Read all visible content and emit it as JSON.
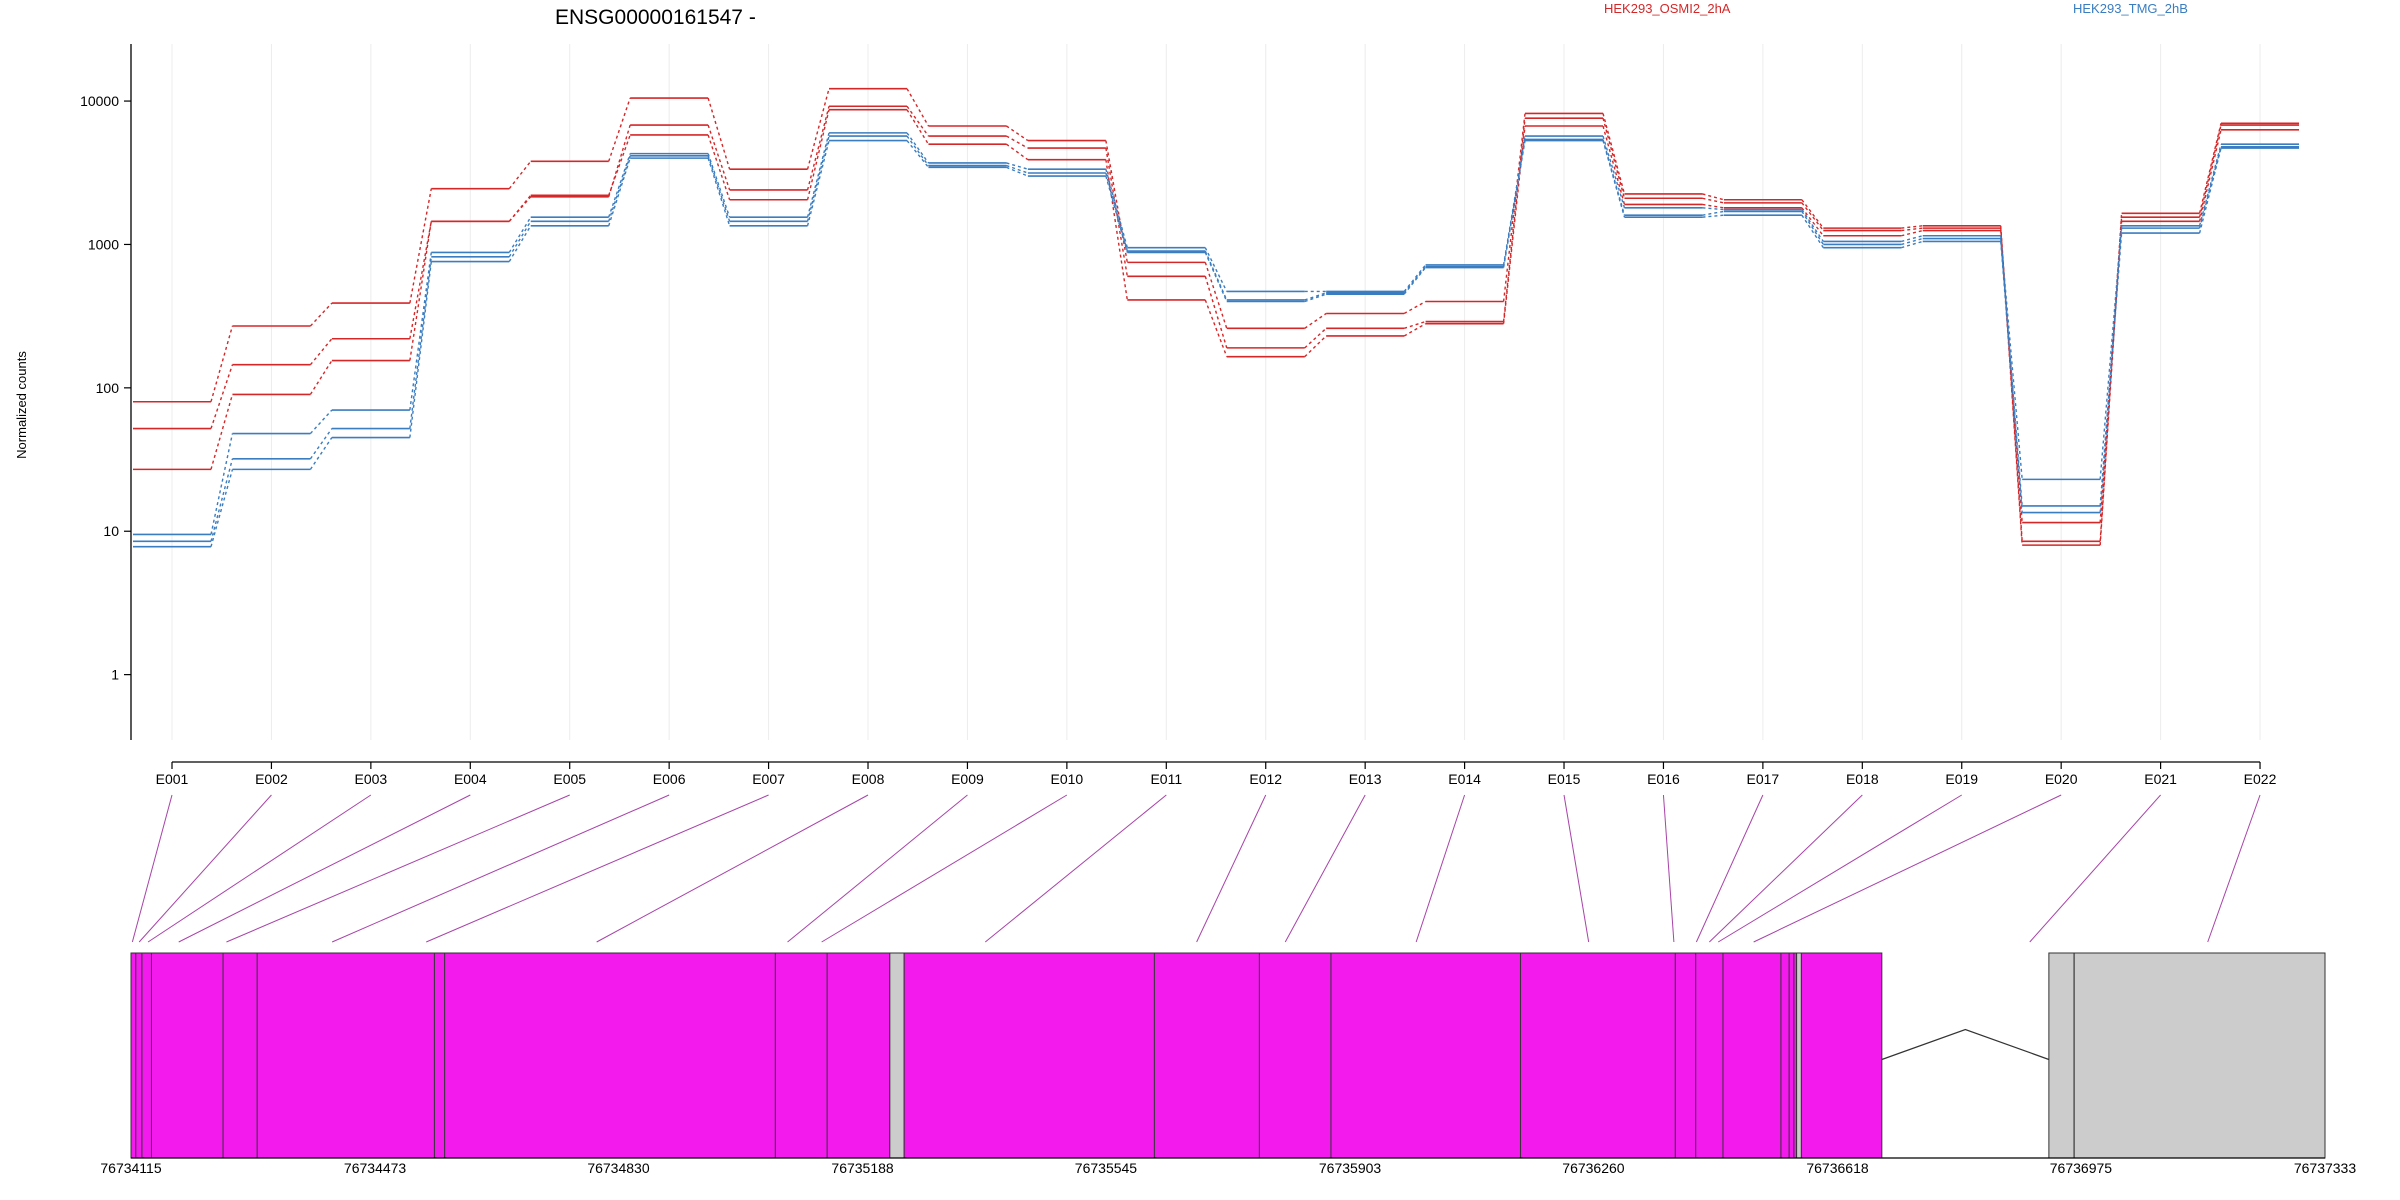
{
  "chart_data": {
    "type": "line",
    "title": "ENSG00000161547 -",
    "ylabel": "Normalized counts",
    "yscale": "log",
    "ylim": [
      0.35,
      25000
    ],
    "yticks": [
      1,
      10,
      100,
      1000,
      10000
    ],
    "ytick_labels": [
      "1",
      "10",
      "100",
      "1000",
      "10000"
    ],
    "grid": "vertical",
    "legend": [
      {
        "name": "HEK293_OSMI2_2hA",
        "color": "#d62728"
      },
      {
        "name": "HEK293_TMG_2hB",
        "color": "#3a7dc0"
      }
    ],
    "categories": [
      "E001",
      "E002",
      "E003",
      "E004",
      "E005",
      "E006",
      "E007",
      "E008",
      "E009",
      "E010",
      "E011",
      "E012",
      "E013",
      "E014",
      "E015",
      "E016",
      "E017",
      "E018",
      "E019",
      "E020",
      "E021",
      "E022"
    ],
    "series": [
      {
        "group": "HEK293_OSMI2_2hA",
        "color": "#d62728",
        "values": [
          80,
          270,
          390,
          2450,
          3800,
          10500,
          3350,
          12200,
          6700,
          5300,
          750,
          260,
          330,
          400,
          8200,
          2250,
          2050,
          1300,
          1350,
          8.5,
          1650,
          7000
        ]
      },
      {
        "group": "HEK293_OSMI2_2hA",
        "color": "#d62728",
        "values": [
          52,
          145,
          220,
          1450,
          2150,
          6800,
          2400,
          9200,
          5700,
          4700,
          600,
          190,
          260,
          290,
          7600,
          2100,
          1950,
          1250,
          1300,
          8,
          1550,
          6800
        ]
      },
      {
        "group": "HEK293_OSMI2_2hA",
        "color": "#d62728",
        "values": [
          27,
          90,
          155,
          1450,
          2200,
          5800,
          2050,
          8700,
          5000,
          3900,
          410,
          165,
          230,
          280,
          6700,
          1900,
          1800,
          1150,
          1250,
          11.5,
          1450,
          6300
        ]
      },
      {
        "group": "HEK293_TMG_2hB",
        "color": "#3a7dc0",
        "values": [
          9.5,
          48,
          70,
          880,
          1550,
          4300,
          1550,
          6000,
          3700,
          3350,
          950,
          470,
          470,
          720,
          5700,
          1800,
          1750,
          1050,
          1150,
          23,
          1350,
          5000
        ]
      },
      {
        "group": "HEK293_TMG_2hB",
        "color": "#3a7dc0",
        "values": [
          8.5,
          32,
          52,
          820,
          1450,
          4150,
          1450,
          5700,
          3550,
          3150,
          900,
          410,
          460,
          700,
          5400,
          1600,
          1700,
          1000,
          1100,
          15,
          1300,
          4800
        ]
      },
      {
        "group": "HEK293_TMG_2hB",
        "color": "#3a7dc0",
        "values": [
          7.8,
          27,
          45,
          760,
          1350,
          4000,
          1350,
          5300,
          3450,
          3000,
          880,
          400,
          450,
          690,
          5300,
          1550,
          1600,
          950,
          1050,
          13.5,
          1200,
          4700
        ]
      }
    ],
    "gene_model": {
      "coord_start": 76734115,
      "coord_end": 76737333,
      "coord_ticks": [
        76734115,
        76734473,
        76734830,
        76735188,
        76735545,
        76735903,
        76736260,
        76736618,
        76736975,
        76737333
      ],
      "coord_tick_labels": [
        "76734115",
        "76734473",
        "76734830",
        "76735188",
        "76735545",
        "76735903",
        "76736260",
        "76736618",
        "76736975",
        "76737333"
      ],
      "segments": [
        {
          "start": 76734115,
          "end": 76735228,
          "color": "#f21aec"
        },
        {
          "start": 76735228,
          "end": 76735249,
          "color": "#cccccc"
        },
        {
          "start": 76735249,
          "end": 76736558,
          "color": "#f21aec"
        },
        {
          "start": 76736558,
          "end": 76736565,
          "color": "#cccccc"
        },
        {
          "start": 76736565,
          "end": 76736683,
          "color": "#f21aec"
        },
        {
          "start": 76736928,
          "end": 76736965,
          "color": "#cccccc"
        },
        {
          "start": 76736965,
          "end": 76737333,
          "color": "#cccccc"
        }
      ],
      "boundaries": [
        76734122,
        76734131,
        76734145,
        76734250,
        76734300,
        76734560,
        76734575,
        76735060,
        76735136,
        76735616,
        76735770,
        76735875,
        76736153,
        76736380,
        76736410,
        76736450,
        76736535,
        76736547,
        76736554,
        76736965
      ],
      "intron": {
        "start": 76736683,
        "end": 76736928
      },
      "exon_links": [
        76734117,
        76734127,
        76734140,
        76734185,
        76734255,
        76734410,
        76734548,
        76734798,
        76735078,
        76735128,
        76735368,
        76735678,
        76735808,
        76736000,
        76736253,
        76736378,
        76736411,
        76736430,
        76736443,
        76736495,
        76736900,
        76737161
      ]
    }
  }
}
